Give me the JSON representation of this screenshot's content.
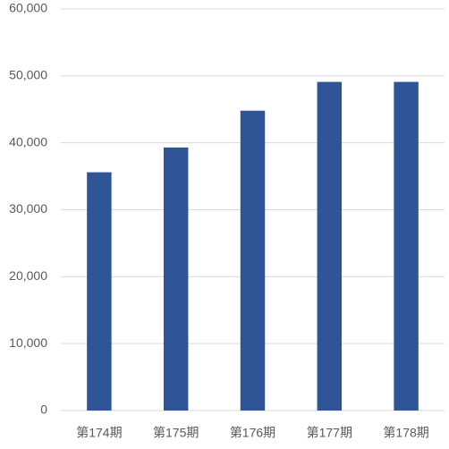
{
  "chart_data": {
    "type": "bar",
    "categories": [
      "第174期",
      "第175期",
      "第176期",
      "第177期",
      "第178期"
    ],
    "values": [
      35600,
      39300,
      44800,
      49100,
      49100
    ],
    "color": "#2f5597",
    "ylim": [
      0,
      60000
    ],
    "yticks": [
      0,
      {
        "value": 10000,
        "label": "10,000"
      },
      {
        "value": 20000,
        "label": "20,000"
      },
      {
        "value": 30000,
        "label": "30,000"
      },
      {
        "value": 40000,
        "label": "40,000"
      },
      {
        "value": 50000,
        "label": "50,000"
      },
      {
        "value": 60000,
        "label": "60,000"
      }
    ],
    "grid": true
  }
}
